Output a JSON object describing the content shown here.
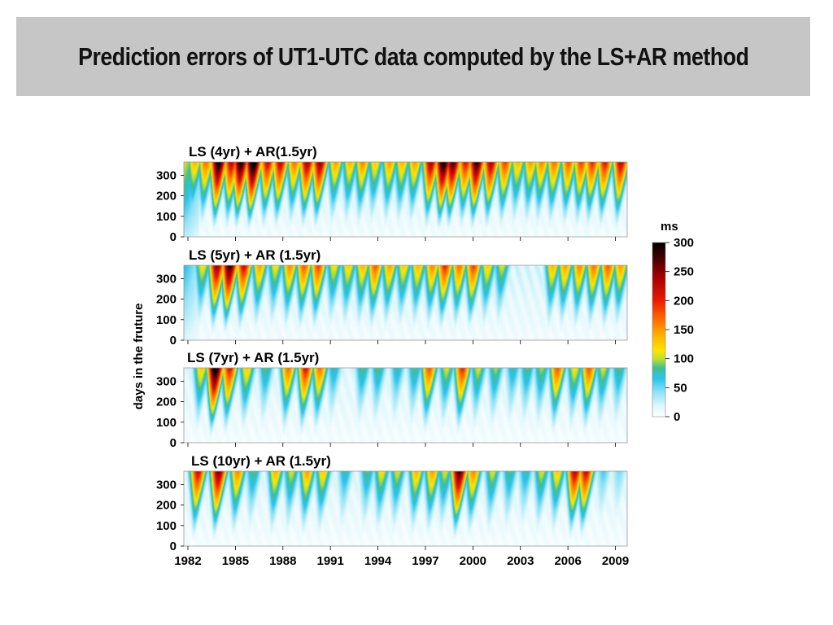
{
  "title": "Prediction errors of UT1-UTC data computed by the LS+AR method",
  "colors": {
    "title_bar_bg": "#c6c6c6",
    "colormap": [
      "#ffffff",
      "#8fe3f6",
      "#2cc3eb",
      "#3fbf93",
      "#b8e032",
      "#ffe400",
      "#ffb000",
      "#ff6a00",
      "#e61c00",
      "#a80000",
      "#3c0000",
      "#000000"
    ]
  },
  "chart_data": {
    "type": "heatmap",
    "ylabel": "days in the fruture",
    "x_ticks": [
      "1982",
      "1985",
      "1988",
      "1991",
      "1994",
      "1997",
      "2000",
      "2003",
      "2006",
      "2009"
    ],
    "y_ticks": [
      "0",
      "100",
      "200",
      "300"
    ],
    "xlim": [
      1982,
      2010
    ],
    "ylim": [
      0,
      365
    ],
    "colorbar": {
      "unit": "ms",
      "ticks": [
        "0",
        "50",
        "100",
        "150",
        "200",
        "250",
        "300"
      ],
      "range": [
        0,
        300
      ],
      "colormap": "white-cyan-green-yellow-orange-red-black"
    },
    "panels": [
      {
        "title": "LS (4yr)  + AR(1.5yr)",
        "baseline": 30,
        "background": [
          [
            1982.0,
            1983.0,
            110
          ]
        ],
        "peaks": [
          [
            1982.7,
            140
          ],
          [
            1983.4,
            170
          ],
          [
            1984.2,
            310
          ],
          [
            1985.0,
            230
          ],
          [
            1985.6,
            300
          ],
          [
            1986.4,
            330
          ],
          [
            1987.3,
            220
          ],
          [
            1988.1,
            230
          ],
          [
            1989.0,
            170
          ],
          [
            1989.8,
            240
          ],
          [
            1990.6,
            250
          ],
          [
            1991.6,
            150
          ],
          [
            1992.5,
            140
          ],
          [
            1993.3,
            160
          ],
          [
            1994.1,
            130
          ],
          [
            1995.0,
            150
          ],
          [
            1995.8,
            140
          ],
          [
            1996.6,
            150
          ],
          [
            1997.6,
            240
          ],
          [
            1998.4,
            310
          ],
          [
            1999.0,
            280
          ],
          [
            1999.8,
            210
          ],
          [
            2000.5,
            290
          ],
          [
            2001.4,
            240
          ],
          [
            2002.3,
            190
          ],
          [
            2003.1,
            140
          ],
          [
            2003.9,
            150
          ],
          [
            2004.6,
            160
          ],
          [
            2005.4,
            170
          ],
          [
            2006.3,
            180
          ],
          [
            2007.1,
            190
          ],
          [
            2007.8,
            200
          ],
          [
            2008.6,
            210
          ],
          [
            2009.6,
            230
          ]
        ]
      },
      {
        "title": "LS (5yr) + AR (1.5yr)",
        "baseline": 30,
        "background": [
          [
            1982.0,
            1983.0,
            70
          ]
        ],
        "peaks": [
          [
            1983.2,
            120
          ],
          [
            1984.1,
            250
          ],
          [
            1984.9,
            290
          ],
          [
            1985.8,
            220
          ],
          [
            1986.8,
            150
          ],
          [
            1987.8,
            120
          ],
          [
            1988.7,
            160
          ],
          [
            1989.6,
            180
          ],
          [
            1990.5,
            190
          ],
          [
            1991.5,
            120
          ],
          [
            1992.4,
            130
          ],
          [
            1993.3,
            140
          ],
          [
            1994.1,
            180
          ],
          [
            1995.0,
            150
          ],
          [
            1995.9,
            130
          ],
          [
            1996.8,
            140
          ],
          [
            1997.7,
            160
          ],
          [
            1998.5,
            200
          ],
          [
            1999.4,
            170
          ],
          [
            2000.3,
            190
          ],
          [
            2001.2,
            130
          ],
          [
            2002.1,
            110
          ],
          [
            2005.3,
            140
          ],
          [
            2006.1,
            150
          ],
          [
            2007.0,
            160
          ],
          [
            2007.9,
            170
          ],
          [
            2008.8,
            180
          ],
          [
            2009.6,
            150
          ]
        ]
      },
      {
        "title": "LS (7yr) + AR (1.5yr)",
        "baseline": 25,
        "background": [],
        "peaks": [
          [
            1983.1,
            130
          ],
          [
            1984.0,
            320
          ],
          [
            1984.9,
            210
          ],
          [
            1986.0,
            130
          ],
          [
            1987.2,
            90
          ],
          [
            1988.6,
            170
          ],
          [
            1989.7,
            210
          ],
          [
            1990.6,
            170
          ],
          [
            1991.5,
            80
          ],
          [
            1993.3,
            90
          ],
          [
            1994.3,
            90
          ],
          [
            1995.5,
            80
          ],
          [
            1996.6,
            90
          ],
          [
            1997.5,
            180
          ],
          [
            1998.6,
            110
          ],
          [
            1999.6,
            200
          ],
          [
            2000.6,
            110
          ],
          [
            2001.7,
            100
          ],
          [
            2002.8,
            80
          ],
          [
            2003.7,
            90
          ],
          [
            2004.6,
            100
          ],
          [
            2005.6,
            180
          ],
          [
            2006.7,
            120
          ],
          [
            2007.6,
            180
          ],
          [
            2008.5,
            110
          ],
          [
            2009.5,
            90
          ]
        ]
      },
      {
        "title": "LS (10yr) + AR (1.5yr)",
        "baseline": 25,
        "background": [],
        "peaks": [
          [
            1982.9,
            220
          ],
          [
            1984.2,
            260
          ],
          [
            1985.4,
            160
          ],
          [
            1986.4,
            90
          ],
          [
            1987.8,
            140
          ],
          [
            1988.8,
            110
          ],
          [
            1989.8,
            150
          ],
          [
            1990.8,
            130
          ],
          [
            1992.2,
            80
          ],
          [
            1993.6,
            90
          ],
          [
            1994.5,
            120
          ],
          [
            1995.5,
            110
          ],
          [
            1996.7,
            140
          ],
          [
            1997.7,
            150
          ],
          [
            1998.5,
            110
          ],
          [
            1999.4,
            280
          ],
          [
            2000.3,
            160
          ],
          [
            2001.5,
            110
          ],
          [
            2002.6,
            90
          ],
          [
            2003.6,
            80
          ],
          [
            2004.6,
            110
          ],
          [
            2005.6,
            130
          ],
          [
            2006.7,
            230
          ],
          [
            2007.4,
            220
          ],
          [
            2008.5,
            60
          ],
          [
            2009.5,
            50
          ]
        ]
      }
    ]
  }
}
